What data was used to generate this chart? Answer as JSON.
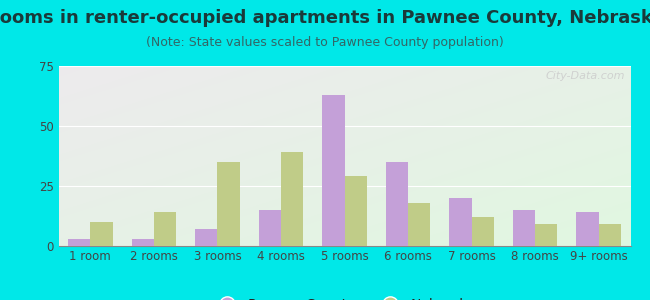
{
  "title": "Rooms in renter-occupied apartments in Pawnee County, Nebraska",
  "subtitle": "(Note: State values scaled to Pawnee County population)",
  "categories": [
    "1 room",
    "2 rooms",
    "3 rooms",
    "4 rooms",
    "5 rooms",
    "6 rooms",
    "7 rooms",
    "8 rooms",
    "9+ rooms"
  ],
  "pawnee_values": [
    3,
    3,
    7,
    15,
    63,
    35,
    20,
    15,
    14
  ],
  "nebraska_values": [
    10,
    14,
    35,
    39,
    29,
    18,
    12,
    9,
    9
  ],
  "pawnee_color": "#c4a0d8",
  "nebraska_color": "#c0cc88",
  "background_color": "#00e8e8",
  "ylim": [
    0,
    75
  ],
  "yticks": [
    0,
    25,
    50,
    75
  ],
  "bar_width": 0.35,
  "title_fontsize": 13,
  "subtitle_fontsize": 9,
  "tick_fontsize": 8.5,
  "legend_fontsize": 10,
  "watermark_text": "City-Data.com"
}
